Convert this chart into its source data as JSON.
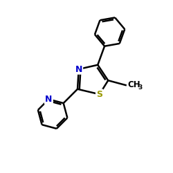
{
  "background": "#ffffff",
  "bond_color": "#000000",
  "bond_lw": 1.8,
  "atom_colors": {
    "N": "#0000cc",
    "S": "#999900",
    "C": "#000000"
  },
  "font_size_N": 9,
  "font_size_S": 9,
  "font_size_methyl": 8.5
}
